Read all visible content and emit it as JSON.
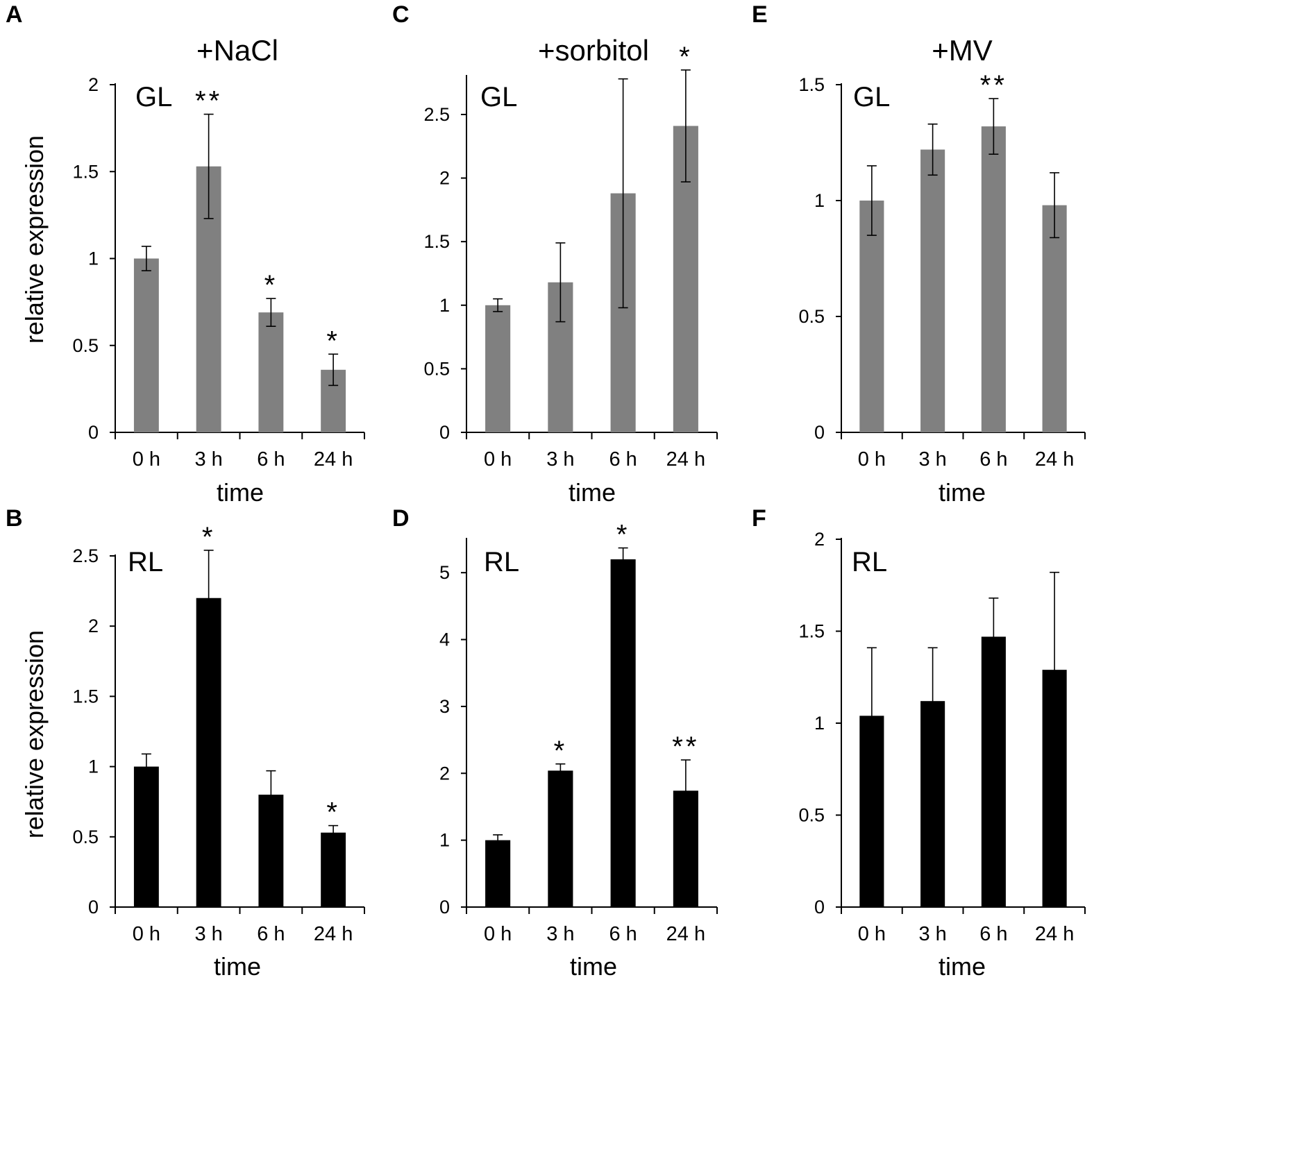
{
  "chart_data": [
    {
      "panel": "A",
      "type": "bar",
      "title": "+NaCl",
      "tissue": "GL",
      "categories": [
        "0 h",
        "3 h",
        "6 h",
        "24 h"
      ],
      "values": [
        1.0,
        1.53,
        0.69,
        0.36
      ],
      "errors": [
        0.07,
        0.3,
        0.08,
        0.09
      ],
      "significance": [
        "",
        "**",
        "*",
        "*"
      ],
      "xlabel": "time",
      "ylabel": "relative expression",
      "ylim": [
        0,
        2
      ],
      "yticks": [
        "0",
        "0.5",
        "1",
        "1.5",
        "2"
      ],
      "bar_color": "#808080"
    },
    {
      "panel": "B",
      "type": "bar",
      "title": "",
      "tissue": "RL",
      "categories": [
        "0 h",
        "3 h",
        "6 h",
        "24 h"
      ],
      "values": [
        1.0,
        2.2,
        0.8,
        0.53
      ],
      "errors": [
        0.09,
        0.34,
        0.17,
        0.05
      ],
      "significance": [
        "",
        "*",
        "",
        "*"
      ],
      "xlabel": "time",
      "ylabel": "relative expression",
      "ylim": [
        0,
        2.5
      ],
      "yticks": [
        "0",
        "0.5",
        "1",
        "1.5",
        "2",
        "2.5"
      ],
      "bar_color": "#000000"
    },
    {
      "panel": "C",
      "type": "bar",
      "title": "+sorbitol",
      "tissue": "GL",
      "categories": [
        "0 h",
        "3 h",
        "6 h",
        "24 h"
      ],
      "values": [
        1.0,
        1.18,
        1.88,
        2.41
      ],
      "errors": [
        0.05,
        0.31,
        0.9,
        0.44
      ],
      "significance": [
        "",
        "",
        "",
        "*"
      ],
      "xlabel": "time",
      "ylabel": "",
      "ylim": [
        0,
        2.8
      ],
      "yticks": [
        "0",
        "0.5",
        "1",
        "1.5",
        "2",
        "2.5"
      ],
      "bar_color": "#808080"
    },
    {
      "panel": "D",
      "type": "bar",
      "title": "",
      "tissue": "RL",
      "categories": [
        "0 h",
        "3 h",
        "6 h",
        "24 h"
      ],
      "values": [
        1.0,
        2.04,
        5.2,
        1.74
      ],
      "errors": [
        0.08,
        0.1,
        0.17,
        0.46
      ],
      "significance": [
        "",
        "*",
        "*",
        "**"
      ],
      "xlabel": "time",
      "ylabel": "",
      "ylim": [
        0,
        5.5
      ],
      "yticks": [
        "0",
        "1",
        "2",
        "3",
        "4",
        "5"
      ],
      "bar_color": "#000000"
    },
    {
      "panel": "E",
      "type": "bar",
      "title": "+MV",
      "tissue": "GL",
      "categories": [
        "0 h",
        "3 h",
        "6 h",
        "24 h"
      ],
      "values": [
        1.0,
        1.22,
        1.32,
        0.98
      ],
      "errors": [
        0.15,
        0.11,
        0.12,
        0.14
      ],
      "significance": [
        "",
        "",
        "**",
        ""
      ],
      "xlabel": "time",
      "ylabel": "",
      "ylim": [
        0,
        1.5
      ],
      "yticks": [
        "0",
        "0.5",
        "1",
        "1.5"
      ],
      "bar_color": "#808080"
    },
    {
      "panel": "F",
      "type": "bar",
      "title": "",
      "tissue": "RL",
      "categories": [
        "0 h",
        "3 h",
        "6 h",
        "24 h"
      ],
      "values": [
        1.04,
        1.12,
        1.47,
        1.29
      ],
      "errors": [
        0.37,
        0.29,
        0.21,
        0.53
      ],
      "significance": [
        "",
        "",
        "",
        ""
      ],
      "xlabel": "time",
      "ylabel": "",
      "ylim": [
        0,
        2
      ],
      "yticks": [
        "0",
        "0.5",
        "1",
        "1.5",
        "2"
      ],
      "bar_color": "#000000"
    }
  ]
}
